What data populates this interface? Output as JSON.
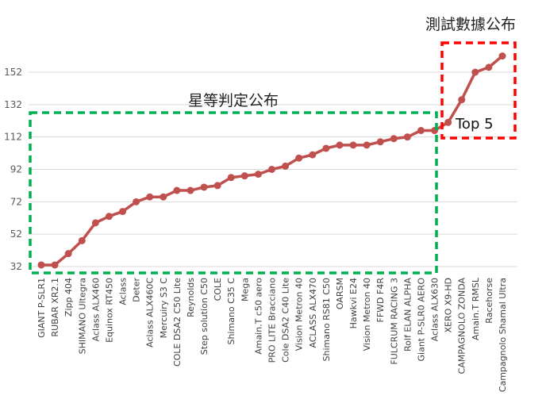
{
  "chart_data": {
    "type": "line",
    "categories": [
      "GIANT P-SLR1",
      "RUBAR XR2.1",
      "Zipp 404",
      "SHIMANO Ultegra",
      "Aclass ALX460",
      "Equinox RT450",
      "Aclass",
      "Deter",
      "Aclass ALX460C",
      "Mercuiry S3 C",
      "COLE DSA2 C50 Lite",
      "Reynolds",
      "Step solution C50",
      "COLE",
      "Shimano C35 C",
      "Mega",
      "Amain.T c50 aero",
      "PRO LITE Bracciano",
      "Cole DSA2 C40 Lite",
      "Vision Metron 40",
      "ACLASS ALX470",
      "Shimano RS81 C50",
      "OARSM",
      "Hawkvi E24",
      "Vision Metron 40",
      "FFWD F4R",
      "FULCRUM RACING 3",
      "Rolf ELAN ALPHA",
      "Giant P-SLR0 AERO",
      "Aclass ALX630",
      "XERO X9-HD",
      "CAMPAGNOLO ZONDA",
      "Amain.T RMSL",
      "Racehorse",
      "Campagnolo Shamal Ultra"
    ],
    "values": [
      33,
      33,
      40,
      48,
      59,
      63,
      66,
      72,
      75,
      75,
      79,
      79,
      81,
      82,
      87,
      88,
      89,
      92,
      94,
      99,
      101,
      105,
      107,
      107,
      107,
      109,
      111,
      112,
      116,
      116,
      121,
      135,
      152,
      155,
      162
    ],
    "yticks": [
      32,
      52,
      72,
      92,
      112,
      132,
      152
    ],
    "ylim": [
      26,
      168
    ],
    "grid": true,
    "line_color": "#c0504d",
    "annotations": [
      {
        "text": "星等判定公布",
        "color": "#00b050"
      },
      {
        "text": "測試數據公布",
        "color": "#ff0000"
      },
      {
        "text": "Top 5",
        "color": "#ff0000"
      }
    ]
  }
}
